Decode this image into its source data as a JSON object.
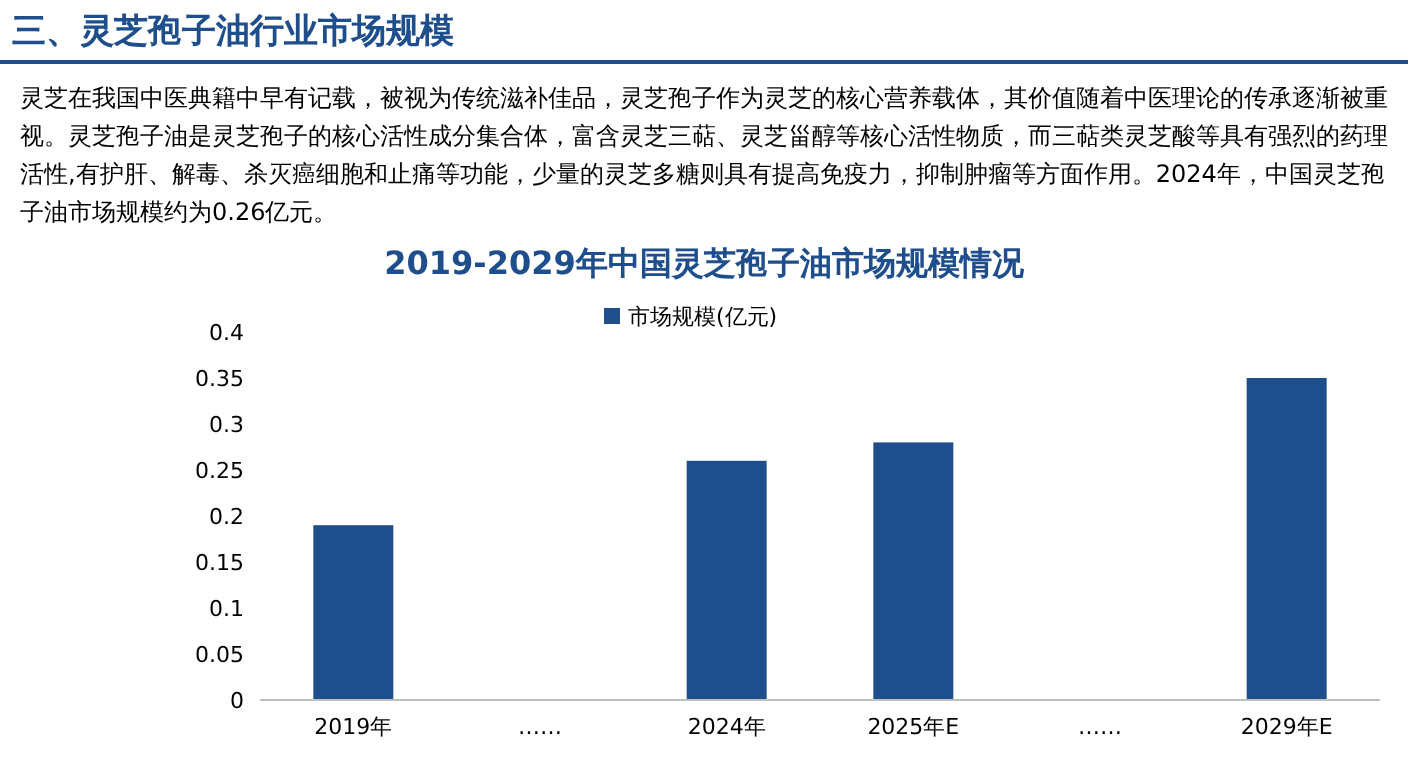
{
  "chart_data": {
    "type": "bar",
    "title": "2019-2029年中国灵芝孢子油市场规模情况",
    "subtitle": "灵芝在我国中医典籍中早有记载，被视为传统滋补佳品，灵芝孢子作为灵芝的核心营养载体，其价值随着中医理论的传承逐渐被重视。灵芝孢子油是灵芝孢子的核心活性成分集合体，富含灵芝三萜、灵芝甾醇等核心活性物质，而三萜类灵芝酸等具有强烈的药理活性,有护肝、解毒、杀灭癌细胞和止痛等功能，少量的灵芝多糖则具有提高免疫力，抑制肿瘤等方面作用。2024年，中国灵芝孢子油市场规模约为0.26亿元。",
    "annotations": [
      "三、灵芝孢子油行业市场规模"
    ],
    "categories": [
      "2019年",
      "……",
      "2024年",
      "2025年E",
      "……",
      "2029年E"
    ],
    "series": [
      {
        "name": "市场规模(亿元)",
        "color": "#1f4e8c",
        "values": [
          0.19,
          null,
          0.26,
          0.28,
          null,
          0.35
        ]
      }
    ],
    "ylim": [
      0,
      0.4
    ],
    "yticks": [
      0,
      0.05,
      0.1,
      0.15,
      0.2,
      0.25,
      0.3,
      0.35,
      0.4
    ],
    "legend": "top"
  }
}
